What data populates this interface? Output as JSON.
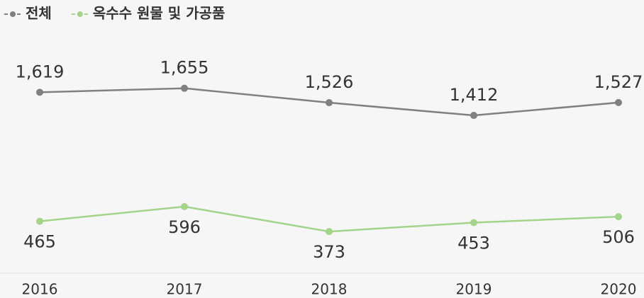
{
  "chart_data": {
    "type": "line",
    "categories": [
      "2016",
      "2017",
      "2018",
      "2019",
      "2020"
    ],
    "series": [
      {
        "name": "전체",
        "color": "#808080",
        "values": [
          1619,
          1655,
          1526,
          1412,
          1527
        ],
        "value_labels": [
          "1,619",
          "1,655",
          "1,526",
          "1,412",
          "1,527"
        ]
      },
      {
        "name": "옥수수 원물 및 가공품",
        "color": "#a3d48a",
        "values": [
          465,
          596,
          373,
          453,
          506
        ]
      }
    ],
    "ylim": [
      0,
      1900
    ],
    "legend": "top-left"
  }
}
